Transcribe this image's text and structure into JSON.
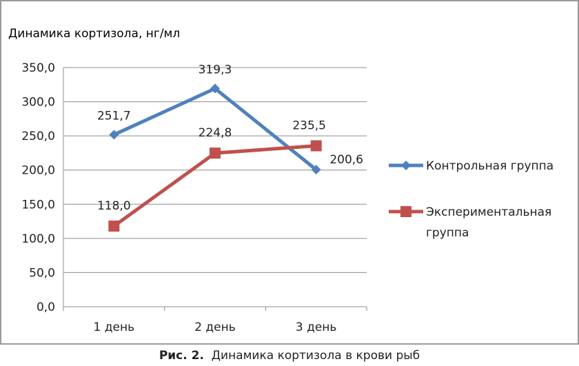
{
  "chart_data": {
    "type": "line",
    "ylabel": "Динамика кортизола, нг/мл",
    "categories": [
      "1 день",
      "2 день",
      "3 день"
    ],
    "ylim": [
      0,
      350
    ],
    "ytick_step": 50,
    "ytick_labels": [
      "0,0",
      "50,0",
      "100,0",
      "150,0",
      "200,0",
      "250,0",
      "300,0",
      "350,0"
    ],
    "grid": true,
    "legend_position": "right",
    "series": [
      {
        "name": "Контрольная группа",
        "values": [
          251.7,
          319.3,
          200.6
        ],
        "labels": [
          "251,7",
          "319,3",
          "200,6"
        ],
        "color": "#4f81bd",
        "marker": "diamond"
      },
      {
        "name": "Экспериментальная группа",
        "legend_lines": [
          "Экспериментальная",
          "группа"
        ],
        "values": [
          118.0,
          224.8,
          235.5
        ],
        "labels": [
          "118,0",
          "224,8",
          "235,5"
        ],
        "color": "#c0504d",
        "marker": "square"
      }
    ]
  },
  "caption": {
    "prefix": "Рис. 2.",
    "text": "Динамика кортизола в крови рыб"
  }
}
